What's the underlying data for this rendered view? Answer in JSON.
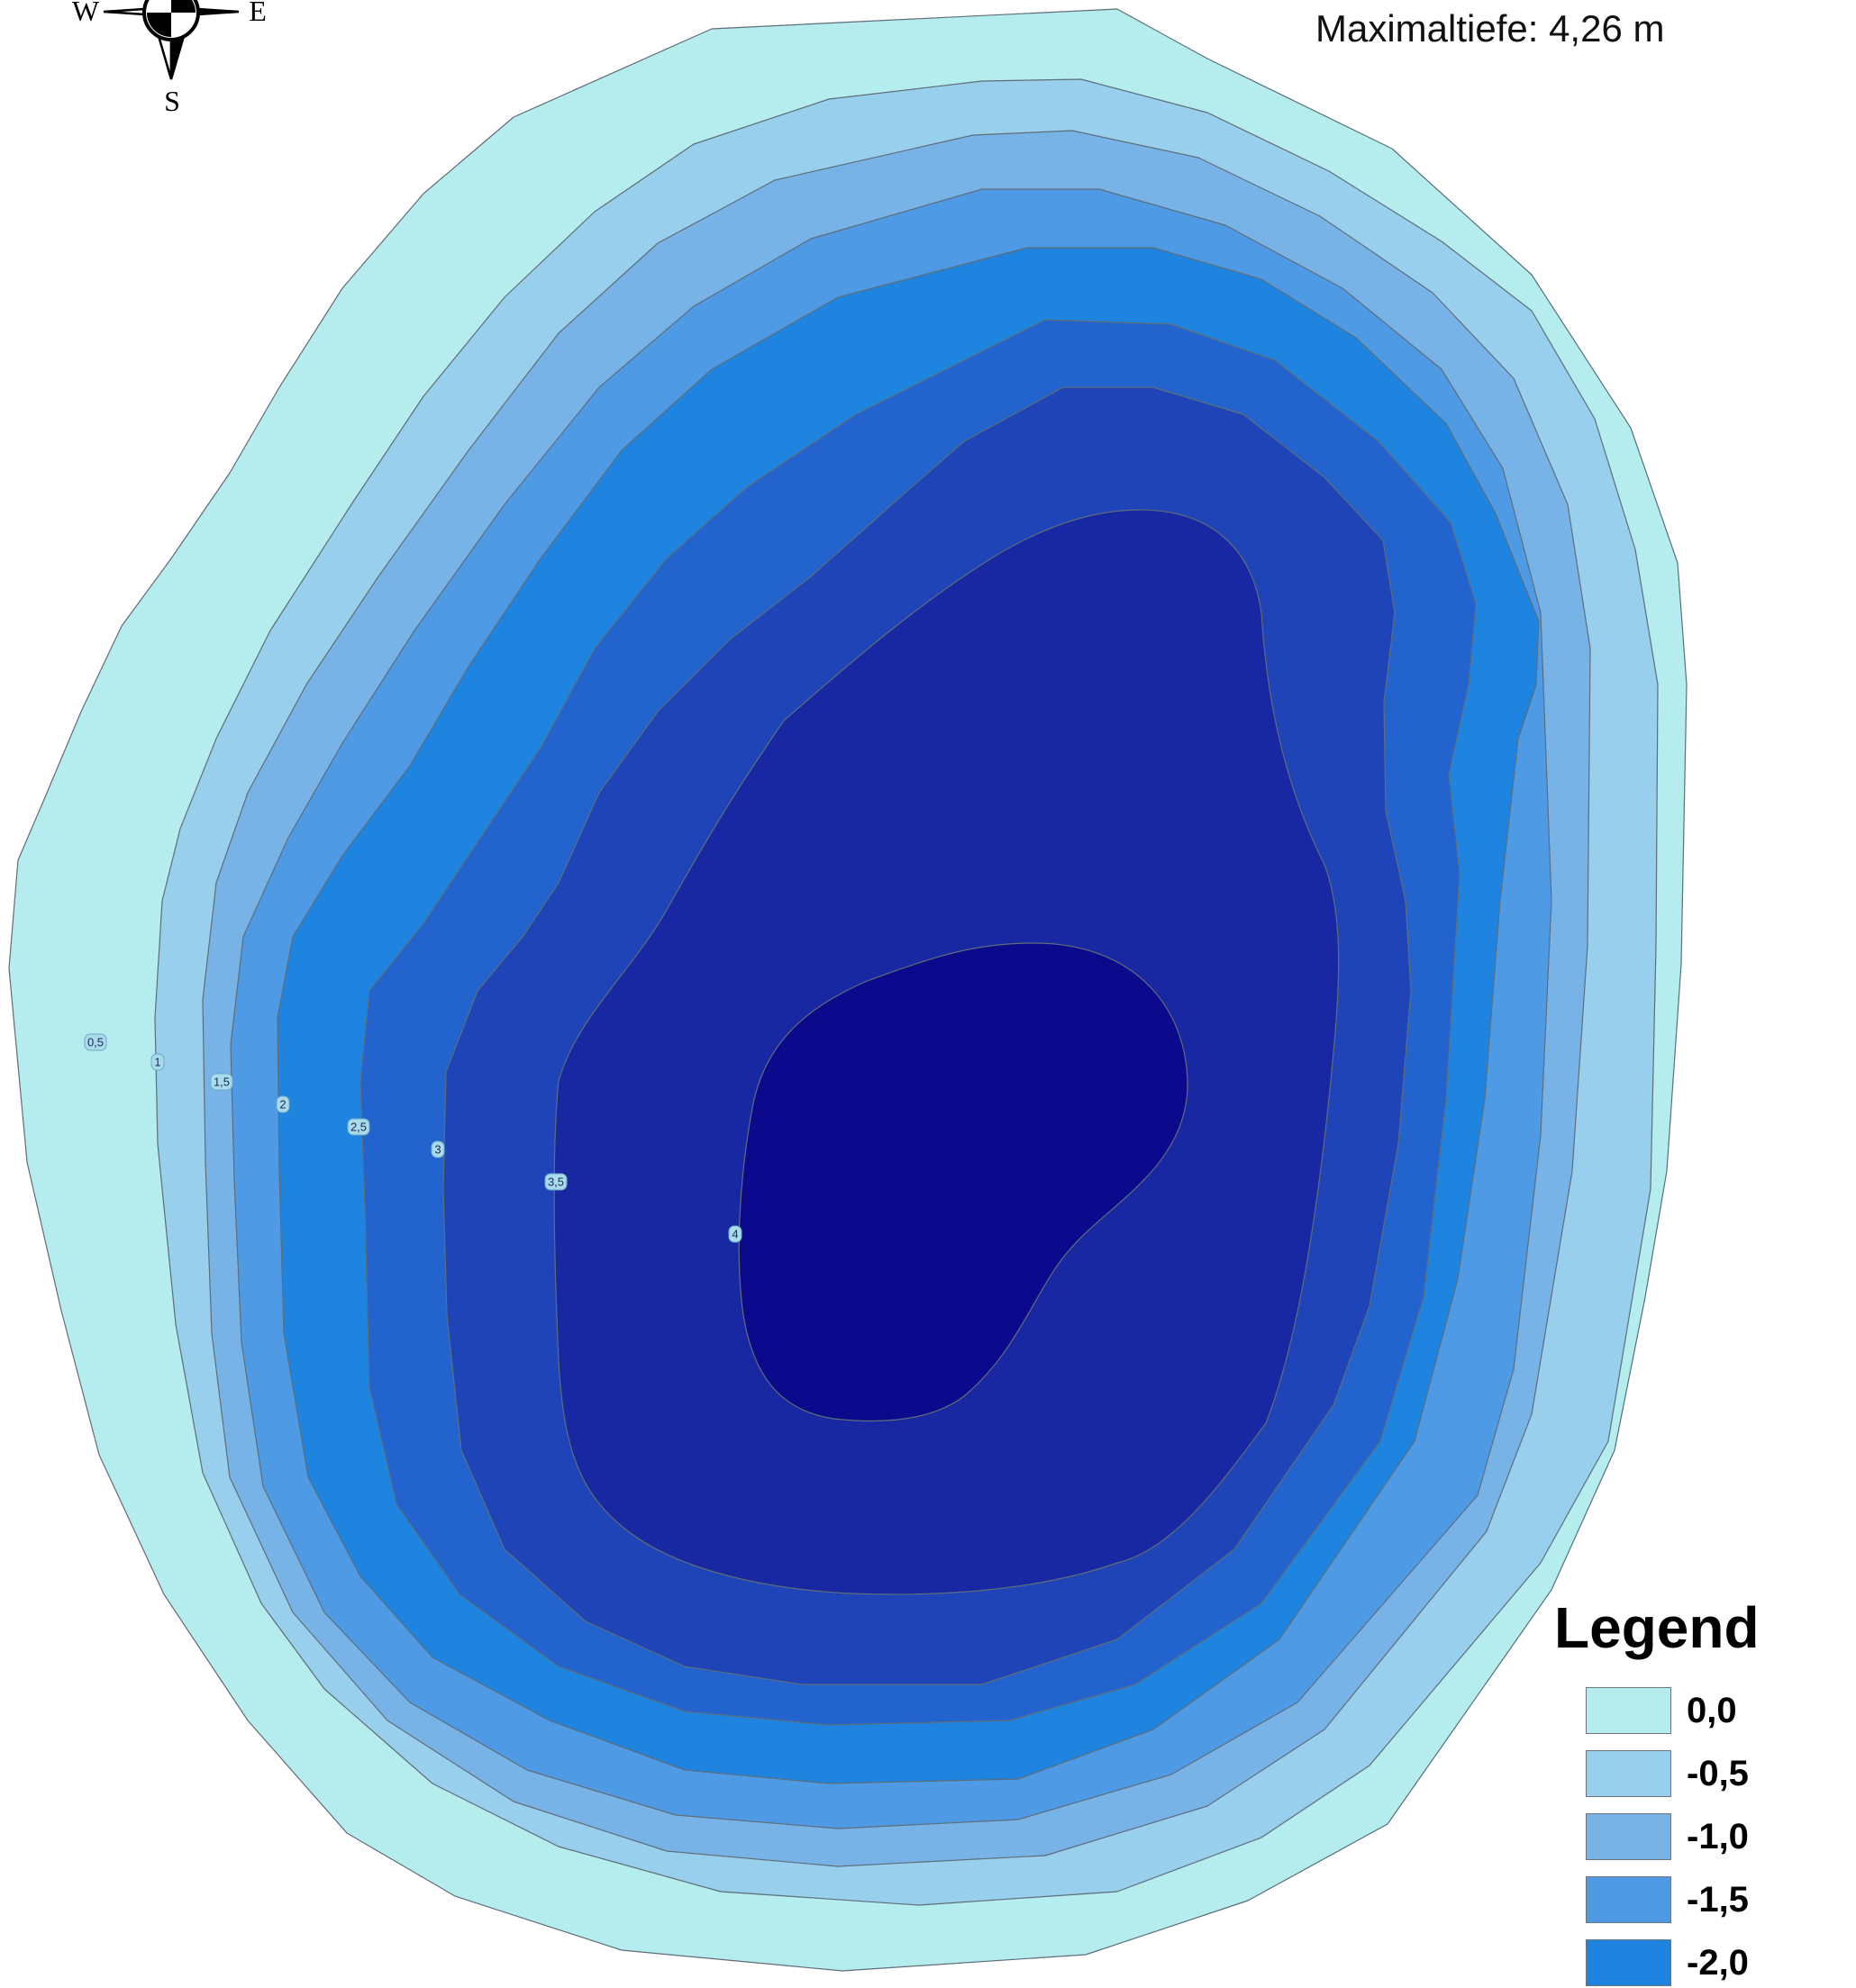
{
  "map": {
    "max_depth_label": "Maximaltiefe: 4,26 m",
    "compass": {
      "west": "W",
      "east": "E",
      "south": "S"
    },
    "depth_bands": [
      {
        "name": "depth-band-0",
        "color": "#b5ecee"
      },
      {
        "name": "depth-band-1",
        "color": "#98cfec"
      },
      {
        "name": "depth-band-2",
        "color": "#78b3e8"
      },
      {
        "name": "depth-band-3",
        "color": "#4f9ae5"
      },
      {
        "name": "depth-band-4",
        "color": "#1f84df"
      },
      {
        "name": "depth-band-5",
        "color": "#2363cd"
      },
      {
        "name": "depth-band-6",
        "color": "#1e44b8"
      },
      {
        "name": "depth-band-7",
        "color": "#1828a3"
      },
      {
        "name": "depth-band-8",
        "color": "#0b0a8c"
      }
    ],
    "contour_labels": [
      "0,5",
      "1",
      "1,5",
      "2",
      "2,5",
      "3",
      "3,5",
      "4"
    ]
  },
  "legend": {
    "title": "Legend",
    "items": [
      {
        "label": "0,0",
        "color": "#b5ecee"
      },
      {
        "label": "-0,5",
        "color": "#98cfec"
      },
      {
        "label": "-1,0",
        "color": "#78b3e8"
      },
      {
        "label": "-1,5",
        "color": "#4f9ae5"
      },
      {
        "label": "-2,0",
        "color": "#1f84df"
      }
    ]
  }
}
